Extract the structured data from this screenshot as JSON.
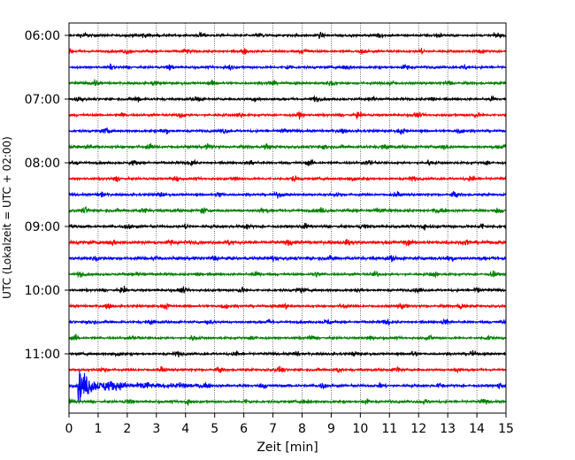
{
  "chart_data": {
    "type": "line",
    "title": "",
    "xlabel": "Zeit  [min]",
    "ylabel": "UTC (Lokalzeit = UTC + 02:00)",
    "xlim": [
      0,
      15
    ],
    "x_ticks": [
      0,
      1,
      2,
      3,
      4,
      5,
      6,
      7,
      8,
      9,
      10,
      11,
      12,
      13,
      14,
      15
    ],
    "x_tick_labels": [
      "0",
      "1",
      "2",
      "3",
      "4",
      "5",
      "6",
      "7",
      "8",
      "9",
      "10",
      "11",
      "12",
      "13",
      "14",
      "15"
    ],
    "y_tick_labels": [
      "06:00",
      "07:00",
      "08:00",
      "09:00",
      "10:00",
      "11:00"
    ],
    "y_tick_rows": [
      0,
      4,
      8,
      12,
      16,
      20
    ],
    "grid_x": true,
    "row_interval_min": 15,
    "row_colors": [
      "#000000",
      "#ff0000",
      "#0000ff",
      "#008000"
    ],
    "rows": [
      {
        "start": "06:00",
        "color": "#000000",
        "amplitude": 0.12
      },
      {
        "start": "06:15",
        "color": "#ff0000",
        "amplitude": 0.12
      },
      {
        "start": "06:30",
        "color": "#0000ff",
        "amplitude": 0.12
      },
      {
        "start": "06:45",
        "color": "#008000",
        "amplitude": 0.12
      },
      {
        "start": "07:00",
        "color": "#000000",
        "amplitude": 0.12
      },
      {
        "start": "07:15",
        "color": "#ff0000",
        "amplitude": 0.12
      },
      {
        "start": "07:30",
        "color": "#0000ff",
        "amplitude": 0.12
      },
      {
        "start": "07:45",
        "color": "#008000",
        "amplitude": 0.14
      },
      {
        "start": "08:00",
        "color": "#000000",
        "amplitude": 0.12
      },
      {
        "start": "08:15",
        "color": "#ff0000",
        "amplitude": 0.12
      },
      {
        "start": "08:30",
        "color": "#0000ff",
        "amplitude": 0.12
      },
      {
        "start": "08:45",
        "color": "#008000",
        "amplitude": 0.14
      },
      {
        "start": "09:00",
        "color": "#000000",
        "amplitude": 0.14
      },
      {
        "start": "09:15",
        "color": "#ff0000",
        "amplitude": 0.16
      },
      {
        "start": "09:30",
        "color": "#0000ff",
        "amplitude": 0.16
      },
      {
        "start": "09:45",
        "color": "#008000",
        "amplitude": 0.12
      },
      {
        "start": "10:00",
        "color": "#000000",
        "amplitude": 0.12
      },
      {
        "start": "10:15",
        "color": "#ff0000",
        "amplitude": 0.12
      },
      {
        "start": "10:30",
        "color": "#0000ff",
        "amplitude": 0.12
      },
      {
        "start": "10:45",
        "color": "#008000",
        "amplitude": 0.12
      },
      {
        "start": "11:00",
        "color": "#000000",
        "amplitude": 0.12
      },
      {
        "start": "11:15",
        "color": "#ff0000",
        "amplitude": 0.12
      },
      {
        "start": "11:30",
        "color": "#0000ff",
        "amplitude": 0.14,
        "event": {
          "onset_min": 0.3,
          "peak_amplitude": 1.9,
          "decay_end_min": 5.0
        }
      },
      {
        "start": "11:45",
        "color": "#008000",
        "amplitude": 0.12
      }
    ]
  }
}
